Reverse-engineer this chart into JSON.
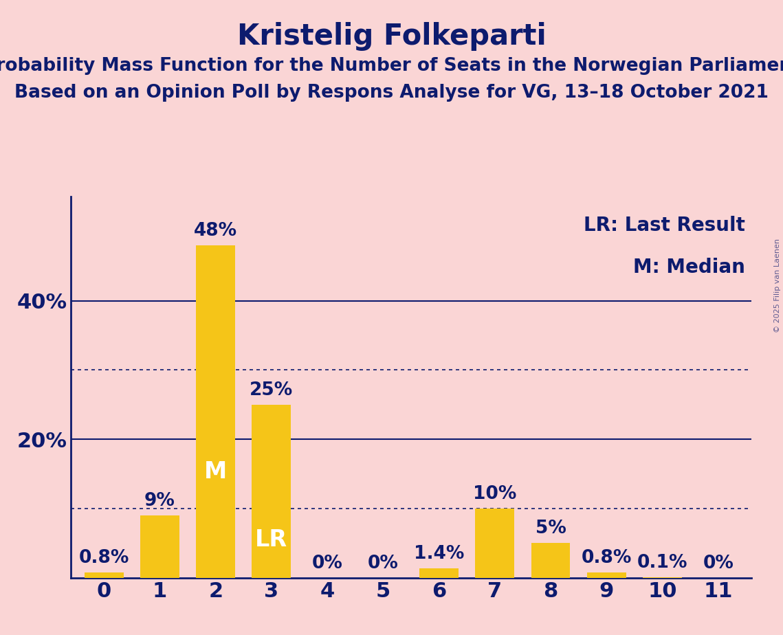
{
  "title": "Kristelig Folkeparti",
  "subtitle1": "Probability Mass Function for the Number of Seats in the Norwegian Parliament",
  "subtitle2": "Based on an Opinion Poll by Respons Analyse for VG, 13–18 October 2021",
  "copyright": "© 2025 Filip van Laenen",
  "categories": [
    0,
    1,
    2,
    3,
    4,
    5,
    6,
    7,
    8,
    9,
    10,
    11
  ],
  "values": [
    0.8,
    9,
    48,
    25,
    0,
    0,
    1.4,
    10,
    5,
    0.8,
    0.1,
    0
  ],
  "bar_color": "#F5C518",
  "background_color": "#FAD5D5",
  "text_color": "#0D1B6E",
  "median_bar": 2,
  "median_label": "M",
  "lr_bar": 3,
  "lr_label": "LR",
  "legend_lr": "LR: Last Result",
  "legend_m": "M: Median",
  "ylim": [
    0,
    55
  ],
  "solid_gridlines": [
    20,
    40
  ],
  "dotted_gridlines": [
    10,
    30
  ],
  "ylabel_ticks": [
    20,
    40
  ],
  "title_fontsize": 30,
  "subtitle_fontsize": 19,
  "tick_fontsize": 22,
  "bar_label_fontsize": 19,
  "legend_fontsize": 20,
  "inner_label_fontsize": 24,
  "inner_label_color": "#FFFFFF"
}
